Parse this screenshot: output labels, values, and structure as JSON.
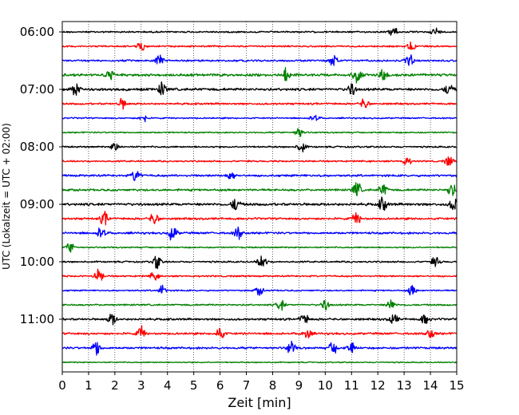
{
  "chart_data": {
    "type": "line",
    "subtype": "helicorder",
    "xlabel": "Zeit  [min]",
    "ylabel": "UTC (Lokalzeit = UTC + 02:00)",
    "xlim": [
      0,
      15
    ],
    "x_ticks": [
      0,
      1,
      2,
      3,
      4,
      5,
      6,
      7,
      8,
      9,
      10,
      11,
      12,
      13,
      14,
      15
    ],
    "x_tick_labels": [
      "0",
      "1",
      "2",
      "3",
      "4",
      "5",
      "6",
      "7",
      "8",
      "9",
      "10",
      "11",
      "12",
      "13",
      "14",
      "15"
    ],
    "grid": "vertical-dotted",
    "y_tick_labels": [
      {
        "row": 0,
        "label": "06:00"
      },
      {
        "row": 4,
        "label": "07:00"
      },
      {
        "row": 8,
        "label": "08:00"
      },
      {
        "row": 12,
        "label": "09:00"
      },
      {
        "row": 16,
        "label": "10:00"
      },
      {
        "row": 20,
        "label": "11:00"
      }
    ],
    "row_colors": [
      "#000000",
      "#ff0000",
      "#0000ff",
      "#008000"
    ],
    "rows": [
      {
        "start": "06:00",
        "color": "#000000",
        "amplitude": 0.35,
        "events": [
          [
            12.6,
            0.6
          ],
          [
            14.2,
            0.5
          ]
        ]
      },
      {
        "start": "06:15",
        "color": "#ff0000",
        "amplitude": 0.35,
        "events": [
          [
            3.0,
            0.5
          ],
          [
            13.3,
            0.6
          ]
        ]
      },
      {
        "start": "06:30",
        "color": "#0000ff",
        "amplitude": 0.4,
        "events": [
          [
            3.7,
            0.7
          ],
          [
            10.3,
            0.7
          ],
          [
            13.2,
            0.7
          ]
        ]
      },
      {
        "start": "06:45",
        "color": "#008000",
        "amplitude": 0.55,
        "events": [
          [
            1.8,
            0.6
          ],
          [
            8.5,
            0.9
          ],
          [
            11.2,
            1.0
          ],
          [
            12.2,
            0.9
          ]
        ]
      },
      {
        "start": "07:00",
        "color": "#000000",
        "amplitude": 0.55,
        "events": [
          [
            0.5,
            0.8
          ],
          [
            3.8,
            0.8
          ],
          [
            11.0,
            0.7
          ],
          [
            14.7,
            0.7
          ]
        ]
      },
      {
        "start": "07:15",
        "color": "#ff0000",
        "amplitude": 0.4,
        "events": [
          [
            2.3,
            0.6
          ],
          [
            11.5,
            0.6
          ]
        ]
      },
      {
        "start": "07:30",
        "color": "#0000ff",
        "amplitude": 0.3,
        "events": [
          [
            3.1,
            0.5
          ],
          [
            9.6,
            0.5
          ]
        ]
      },
      {
        "start": "07:45",
        "color": "#008000",
        "amplitude": 0.3,
        "events": [
          [
            9.0,
            0.6
          ]
        ]
      },
      {
        "start": "08:00",
        "color": "#000000",
        "amplitude": 0.35,
        "events": [
          [
            9.1,
            0.7
          ],
          [
            2.0,
            0.5
          ]
        ]
      },
      {
        "start": "08:15",
        "color": "#ff0000",
        "amplitude": 0.35,
        "events": [
          [
            13.1,
            0.5
          ],
          [
            14.7,
            0.6
          ]
        ]
      },
      {
        "start": "08:30",
        "color": "#0000ff",
        "amplitude": 0.45,
        "events": [
          [
            2.8,
            0.8
          ],
          [
            6.4,
            0.5
          ]
        ]
      },
      {
        "start": "08:45",
        "color": "#008000",
        "amplitude": 0.45,
        "events": [
          [
            11.2,
            1.0
          ],
          [
            12.2,
            0.7
          ],
          [
            14.8,
            0.8
          ]
        ]
      },
      {
        "start": "09:00",
        "color": "#000000",
        "amplitude": 0.55,
        "events": [
          [
            6.6,
            0.8
          ],
          [
            12.2,
            0.8
          ],
          [
            14.9,
            0.9
          ]
        ]
      },
      {
        "start": "09:15",
        "color": "#ff0000",
        "amplitude": 0.45,
        "events": [
          [
            1.6,
            0.8
          ],
          [
            3.5,
            0.7
          ],
          [
            11.2,
            0.7
          ]
        ]
      },
      {
        "start": "09:30",
        "color": "#0000ff",
        "amplitude": 0.45,
        "events": [
          [
            1.5,
            0.8
          ],
          [
            4.2,
            0.9
          ],
          [
            6.7,
            0.7
          ]
        ]
      },
      {
        "start": "09:45",
        "color": "#008000",
        "amplitude": 0.3,
        "events": [
          [
            0.3,
            0.6
          ]
        ]
      },
      {
        "start": "10:00",
        "color": "#000000",
        "amplitude": 0.35,
        "events": [
          [
            3.6,
            0.8
          ],
          [
            7.6,
            0.9
          ],
          [
            14.2,
            0.6
          ]
        ]
      },
      {
        "start": "10:15",
        "color": "#ff0000",
        "amplitude": 0.35,
        "events": [
          [
            1.4,
            0.8
          ],
          [
            3.5,
            0.5
          ]
        ]
      },
      {
        "start": "10:30",
        "color": "#0000ff",
        "amplitude": 0.3,
        "events": [
          [
            3.8,
            0.6
          ],
          [
            7.5,
            0.5
          ],
          [
            13.3,
            0.6
          ]
        ]
      },
      {
        "start": "10:45",
        "color": "#008000",
        "amplitude": 0.35,
        "events": [
          [
            8.3,
            0.7
          ],
          [
            10.0,
            0.6
          ],
          [
            12.5,
            0.7
          ]
        ]
      },
      {
        "start": "11:00",
        "color": "#000000",
        "amplitude": 0.45,
        "events": [
          [
            1.9,
            0.7
          ],
          [
            9.2,
            0.7
          ],
          [
            12.6,
            0.7
          ],
          [
            13.8,
            0.6
          ]
        ]
      },
      {
        "start": "11:15",
        "color": "#ff0000",
        "amplitude": 0.45,
        "events": [
          [
            3.0,
            0.7
          ],
          [
            6.0,
            0.8
          ],
          [
            9.3,
            0.7
          ],
          [
            14.0,
            0.6
          ]
        ]
      },
      {
        "start": "11:30",
        "color": "#0000ff",
        "amplitude": 0.45,
        "events": [
          [
            1.3,
            0.9
          ],
          [
            8.7,
            0.8
          ],
          [
            10.3,
            0.7
          ],
          [
            11.0,
            0.7
          ]
        ]
      },
      {
        "start": "11:45",
        "color": "#008000",
        "amplitude": 0.25,
        "events": []
      }
    ]
  }
}
